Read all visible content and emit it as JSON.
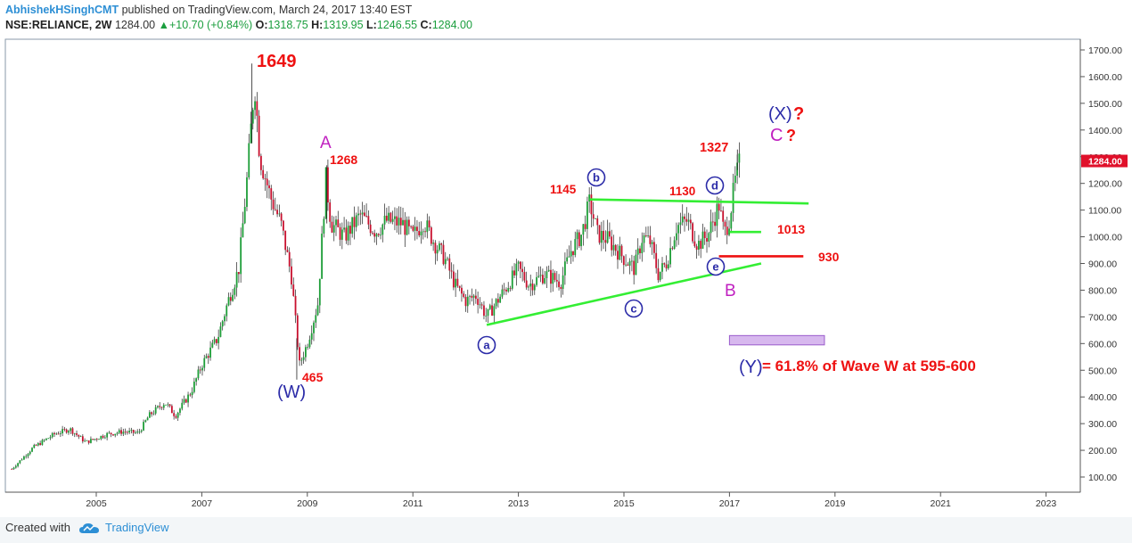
{
  "header": {
    "author": "AbhishekHSinghCMT",
    "published": " published on TradingView.com, March 24, 2017 13:40 EST",
    "symbol": "NSE:RELIANCE, 2W",
    "last": "1284.00",
    "change_arrow": "▲",
    "change": "+10.70 (+0.84%)",
    "o_label": "O:",
    "o_value": "1318.75",
    "h_label": "H:",
    "h_value": "1319.95",
    "l_label": "L:",
    "l_value": "1246.55",
    "c_label": "C:",
    "c_value": "1284.00"
  },
  "footer": {
    "created_with": "Created with",
    "brand": "TradingView"
  },
  "colors": {
    "up_candle": "#1e9e38",
    "down_candle": "#c8102e",
    "trendline_green": "#33ee33",
    "level_red": "#ee1111",
    "price_badge": "#e0102a",
    "wave_blue": "#2b2ba8",
    "wave_magenta": "#c020c0",
    "target_box_fill": "#d7b8ee",
    "target_box_stroke": "#9a5ccc"
  },
  "chart_data": {
    "type": "candlestick",
    "timeframe": "2W",
    "x_ticks": [
      "2005",
      "2007",
      "2009",
      "2011",
      "2013",
      "2015",
      "2017",
      "2019",
      "2021",
      "2023"
    ],
    "y_ticks": [
      "1700.00",
      "1600.00",
      "1500.00",
      "1400.00",
      "1300.00",
      "1200.00",
      "1100.00",
      "1000.00",
      "900.00",
      "800.00",
      "700.00",
      "600.00",
      "500.00",
      "400.00",
      "300.00",
      "200.00",
      "100.00"
    ],
    "ylim": [
      60,
      1740
    ],
    "last_price_label": "1284.00",
    "price_path": [
      [
        2003.4,
        130
      ],
      [
        2003.8,
        210
      ],
      [
        2004.2,
        260
      ],
      [
        2004.5,
        280
      ],
      [
        2004.8,
        230
      ],
      [
        2005.2,
        260
      ],
      [
        2005.5,
        270
      ],
      [
        2005.8,
        265
      ],
      [
        2006.0,
        330
      ],
      [
        2006.3,
        380
      ],
      [
        2006.5,
        330
      ],
      [
        2006.8,
        420
      ],
      [
        2007.0,
        520
      ],
      [
        2007.3,
        620
      ],
      [
        2007.5,
        760
      ],
      [
        2007.7,
        880
      ],
      [
        2007.85,
        1200
      ],
      [
        2008.0,
        1580
      ],
      [
        2008.1,
        1300
      ],
      [
        2008.3,
        1150
      ],
      [
        2008.5,
        1050
      ],
      [
        2008.7,
        850
      ],
      [
        2008.85,
        520
      ],
      [
        2009.0,
        600
      ],
      [
        2009.2,
        750
      ],
      [
        2009.35,
        1220
      ],
      [
        2009.45,
        1050
      ],
      [
        2009.7,
        1000
      ],
      [
        2010.0,
        1080
      ],
      [
        2010.3,
        1020
      ],
      [
        2010.5,
        1060
      ],
      [
        2010.8,
        1050
      ],
      [
        2011.0,
        1000
      ],
      [
        2011.2,
        1060
      ],
      [
        2011.4,
        980
      ],
      [
        2011.6,
        920
      ],
      [
        2011.8,
        820
      ],
      [
        2012.0,
        760
      ],
      [
        2012.2,
        780
      ],
      [
        2012.4,
        700
      ],
      [
        2012.7,
        790
      ],
      [
        2013.0,
        880
      ],
      [
        2013.2,
        820
      ],
      [
        2013.5,
        860
      ],
      [
        2013.8,
        830
      ],
      [
        2014.0,
        950
      ],
      [
        2014.2,
        1010
      ],
      [
        2014.35,
        1130
      ],
      [
        2014.5,
        1010
      ],
      [
        2014.7,
        990
      ],
      [
        2015.0,
        920
      ],
      [
        2015.2,
        880
      ],
      [
        2015.35,
        1000
      ],
      [
        2015.5,
        980
      ],
      [
        2015.65,
        860
      ],
      [
        2015.8,
        900
      ],
      [
        2016.0,
        1040
      ],
      [
        2016.2,
        1060
      ],
      [
        2016.4,
        970
      ],
      [
        2016.6,
        1010
      ],
      [
        2016.8,
        1120
      ],
      [
        2016.9,
        1010
      ],
      [
        2017.0,
        1070
      ],
      [
        2017.1,
        1200
      ],
      [
        2017.2,
        1284
      ]
    ],
    "annotations": {
      "peak_1649": "1649",
      "wave_w": "(W)",
      "low_465": "465",
      "wave_a": "A",
      "high_1268": "1268",
      "label_1145": "1145",
      "label_1130": "1130",
      "label_1327": "1327",
      "label_1013": "1013",
      "label_930": "930",
      "wave_x": "(X)",
      "question_mark": "?",
      "wave_c": "C",
      "wave_b": "B",
      "circle_a": "a",
      "circle_b": "b",
      "circle_c": "c",
      "circle_d": "d",
      "circle_e": "e",
      "wave_y": "(Y)",
      "target_text": "= 61.8% of Wave W at 595-600"
    },
    "trendlines": [
      {
        "name": "triangle-upper",
        "from": [
          2014.35,
          1140
        ],
        "to": [
          2018.5,
          1125
        ]
      },
      {
        "name": "triangle-lower",
        "from": [
          2012.4,
          670
        ],
        "to": [
          2017.6,
          900
        ]
      },
      {
        "name": "level-1013",
        "from": [
          2017.0,
          1018
        ],
        "to": [
          2017.6,
          1018
        ]
      }
    ],
    "levels": [
      {
        "name": "level-930",
        "from": [
          2016.8,
          927
        ],
        "to": [
          2018.4,
          927
        ]
      }
    ],
    "target_zone": {
      "from_year": 2017.0,
      "to_year": 2018.8,
      "low": 595,
      "high": 630
    }
  }
}
